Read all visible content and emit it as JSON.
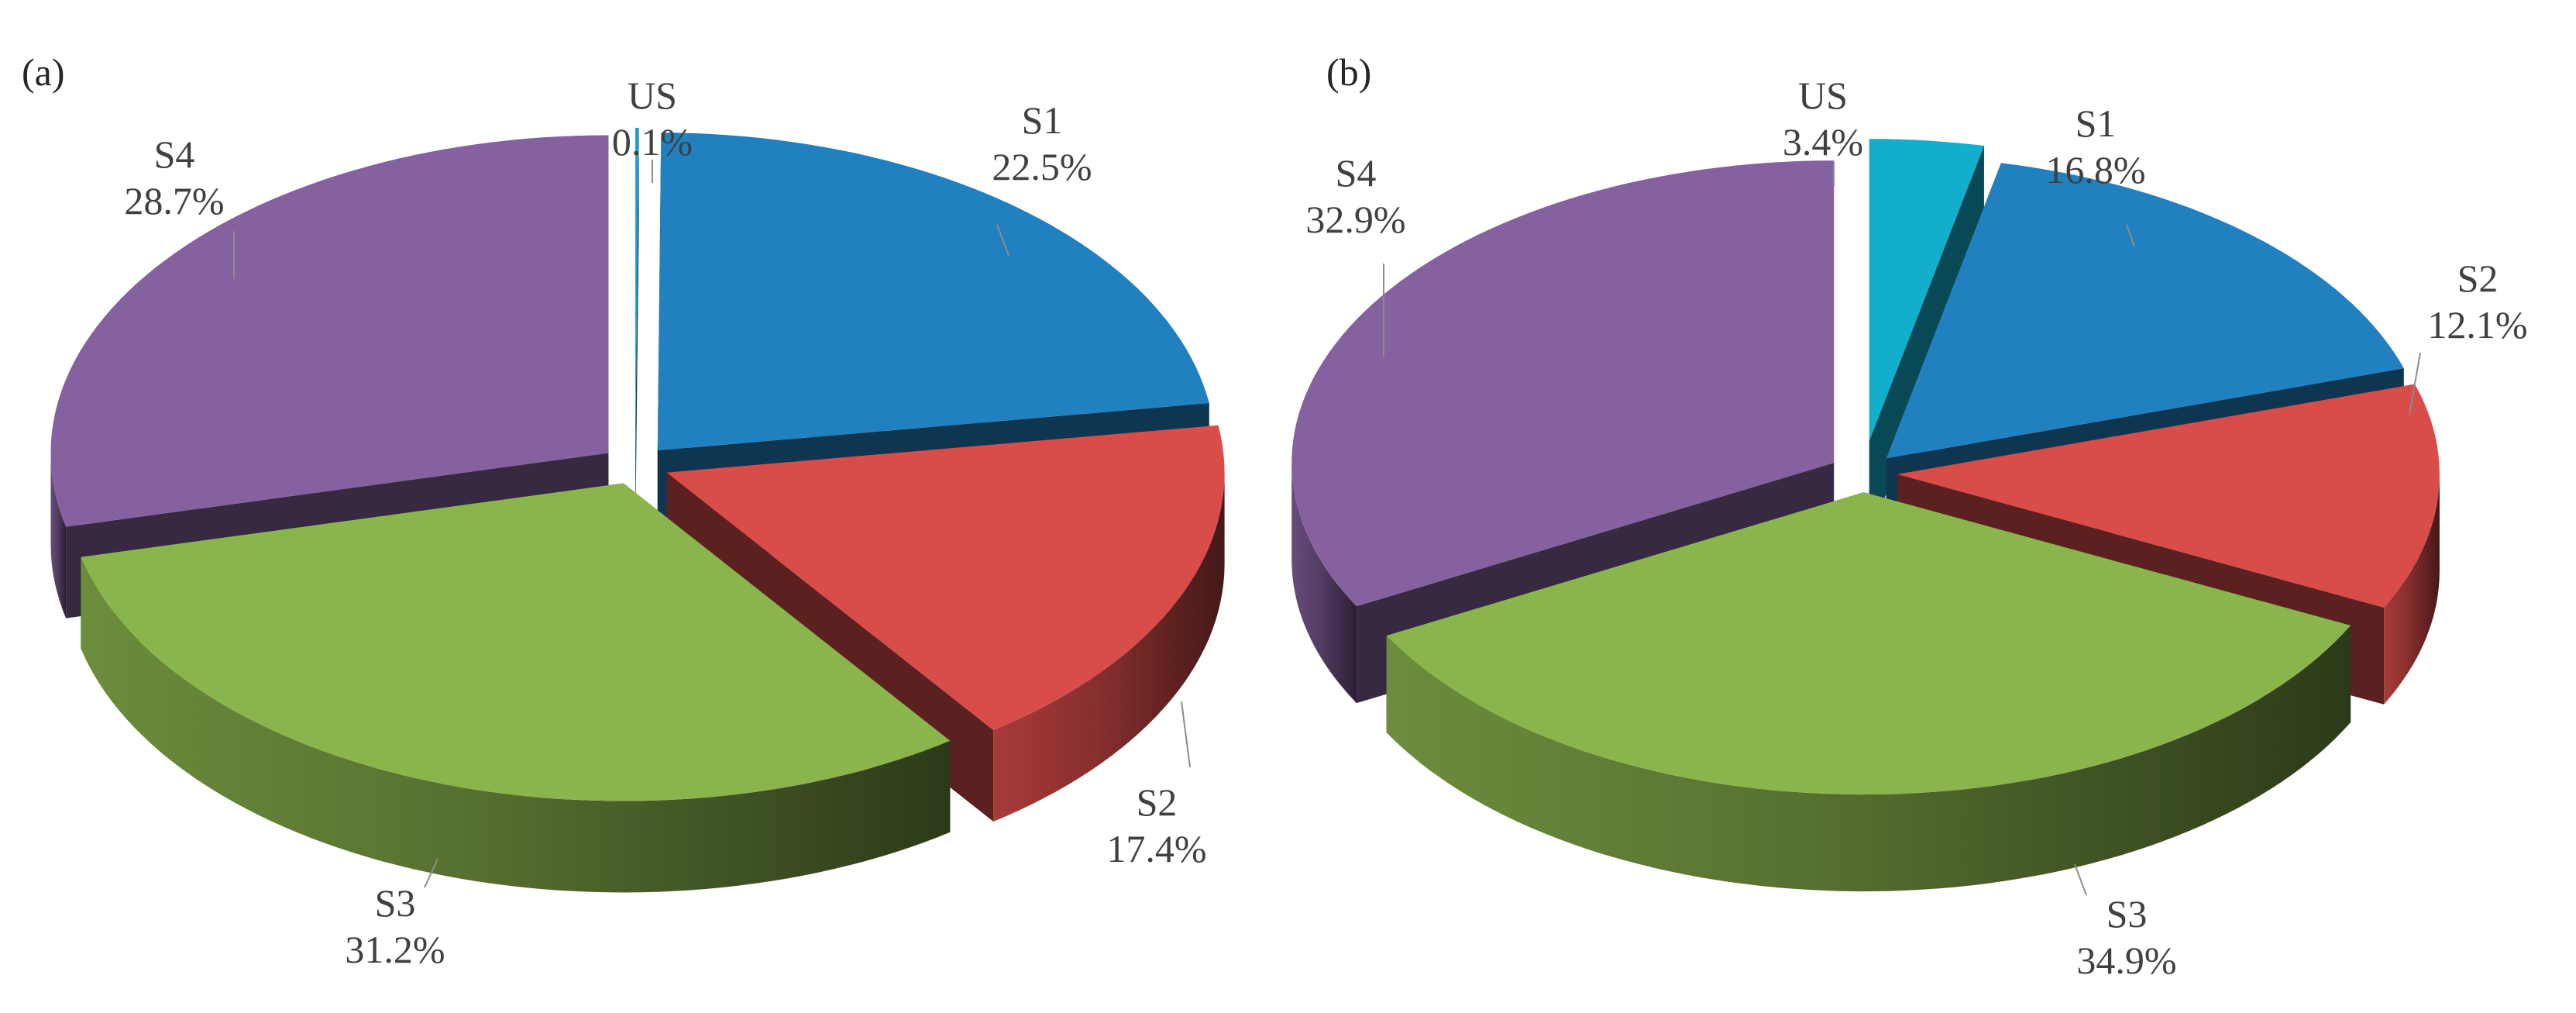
{
  "figure": {
    "panels": [
      "(a)",
      "(b)"
    ]
  },
  "chart_data": [
    {
      "type": "pie",
      "panel": "(a)",
      "title": "",
      "categories": [
        "US",
        "S1",
        "S2",
        "S3",
        "S4"
      ],
      "values": [
        0.1,
        22.5,
        17.4,
        31.2,
        28.7
      ],
      "labels": [
        {
          "name": "US",
          "value": "0.1%"
        },
        {
          "name": "S1",
          "value": "22.5%"
        },
        {
          "name": "S2",
          "value": "17.4%"
        },
        {
          "name": "S3",
          "value": "31.2%"
        },
        {
          "name": "S4",
          "value": "28.7%"
        }
      ],
      "colors": [
        "#1f9ad6",
        "#2180bf",
        "#d84c4a",
        "#8ab54d",
        "#8561a0"
      ],
      "exploded": true,
      "three_d": true
    },
    {
      "type": "pie",
      "panel": "(b)",
      "title": "",
      "categories": [
        "US",
        "S1",
        "S2",
        "S3",
        "S4"
      ],
      "values": [
        3.4,
        16.8,
        12.1,
        34.9,
        32.9
      ],
      "labels": [
        {
          "name": "US",
          "value": "3.4%"
        },
        {
          "name": "S1",
          "value": "16.8%"
        },
        {
          "name": "S2",
          "value": "12.1%"
        },
        {
          "name": "S3",
          "value": "34.9%"
        },
        {
          "name": "S4",
          "value": "32.9%"
        }
      ],
      "colors": [
        "#12aecb",
        "#2180bf",
        "#d84c4a",
        "#8ab54d",
        "#8561a0"
      ],
      "exploded": true,
      "three_d": true
    }
  ]
}
